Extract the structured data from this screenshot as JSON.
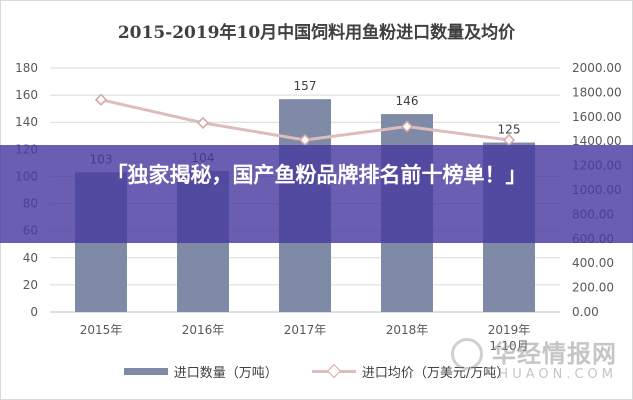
{
  "chart_data": {
    "type": "bar",
    "title": "2015-2019年10月中国饲料用鱼粉进口数量及均价",
    "categories": [
      "2015年",
      "2016年",
      "2017年",
      "2018年",
      "2019年\n1-10月"
    ],
    "series": [
      {
        "name": "进口数量（万吨）",
        "type": "bar",
        "axis": "left",
        "values": [
          103,
          104,
          157,
          146,
          125
        ],
        "labels": [
          "103",
          "104",
          "157",
          "146",
          "125"
        ],
        "color": "#7f8aa6"
      },
      {
        "name": "进口均价（万美元/万吨）",
        "type": "line",
        "axis": "right",
        "values": [
          1740,
          1550,
          1410,
          1520,
          1410
        ],
        "color": "#dcbcbc",
        "marker": "diamond"
      }
    ],
    "y_left": {
      "range": [
        0,
        180
      ],
      "ticks": [
        0,
        20,
        40,
        60,
        80,
        100,
        120,
        140,
        160,
        180
      ],
      "tick_labels": [
        "0",
        "20",
        "40",
        "60",
        "80",
        "100",
        "120",
        "140",
        "160",
        "180"
      ]
    },
    "y_right": {
      "range": [
        0,
        2000
      ],
      "ticks": [
        0,
        200,
        400,
        600,
        800,
        1000,
        1200,
        1400,
        1600,
        1800,
        2000
      ],
      "tick_labels": [
        "0.00",
        "200.00",
        "400.00",
        "600.00",
        "800.00",
        "1000.00",
        "1200.00",
        "1400.00",
        "1600.00",
        "1800.00",
        "2000.00"
      ]
    },
    "grid": true,
    "legend": "bottom"
  },
  "overlay": {
    "banner_text": "「独家揭秘，国产鱼粉品牌排名前十榜单！」",
    "banner_color": "#483aa0"
  },
  "watermark": {
    "main": "华经情报网",
    "sub": "HUAON.COM"
  }
}
